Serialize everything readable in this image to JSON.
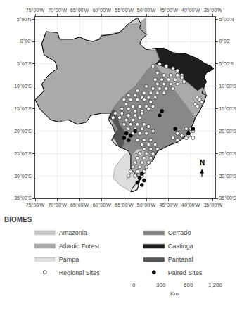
{
  "chart_data": {
    "type": "scatter",
    "xlim": [
      -75,
      -34.5
    ],
    "ylim": [
      -35,
      5.5
    ],
    "xticks": [
      {
        "value": -75,
        "label": "75°00'W"
      },
      {
        "value": -70,
        "label": "70°00'W"
      },
      {
        "value": -65,
        "label": "65°00'W"
      },
      {
        "value": -60,
        "label": "60°00'W"
      },
      {
        "value": -55,
        "label": "55°00'W"
      },
      {
        "value": -50,
        "label": "50°00'W"
      },
      {
        "value": -45,
        "label": "45°00'W"
      },
      {
        "value": -40,
        "label": "40°00'W"
      },
      {
        "value": -35,
        "label": "35°00'W"
      }
    ],
    "yticks": [
      {
        "value": 5,
        "label": "5°00'N"
      },
      {
        "value": 0,
        "label": "0°00'"
      },
      {
        "value": -5,
        "label": "5°00'S"
      },
      {
        "value": -10,
        "label": "10°00'S"
      },
      {
        "value": -15,
        "label": "15°00'S"
      },
      {
        "value": -20,
        "label": "20°00'S"
      },
      {
        "value": -25,
        "label": "25°00'S"
      },
      {
        "value": -30,
        "label": "30°00'S"
      },
      {
        "value": -35,
        "label": "35°00'S"
      }
    ],
    "grid": true,
    "legend": "bottom",
    "legend_title": "BIOMES",
    "series": [
      {
        "name": "Amazonia",
        "type": "polygon",
        "color": "#c8c8c8",
        "line_style": "solid",
        "x": [
          -34.8,
          -35.5,
          -37,
          -38.5,
          -41,
          -44,
          -46,
          -48,
          -50,
          -51.5,
          -51,
          -50,
          -51.5,
          -51.2,
          -52,
          -54,
          -56,
          -58,
          -60,
          -60.5,
          -62,
          -63.5,
          -65,
          -66.5,
          -69.5,
          -70,
          -72.5,
          -73.5,
          -73,
          -70.5,
          -70,
          -72,
          -73.5,
          -73,
          -75,
          -74,
          -72.5,
          -71.5,
          -69.5,
          -69,
          -67.5,
          -65.5,
          -63.5,
          -62.5,
          -60,
          -58,
          -58.5,
          -57.8,
          -57.5,
          -57,
          -57.8,
          -57,
          -55,
          -54,
          -53.5,
          -53.5,
          -53.5,
          -52,
          -51.5,
          -52,
          -53,
          -53.5,
          -53,
          -50.5,
          -50,
          -48.5,
          -47.5,
          -44.5,
          -43,
          -41,
          -40.5,
          -39.5,
          -39,
          -38,
          -37,
          -36.5,
          -37.5,
          -37,
          -36.5,
          -37,
          -36.5,
          -35.5,
          -34.8
        ],
        "y": [
          -6,
          -5.5,
          -4.8,
          -3.8,
          -2.8,
          -2.5,
          -1.5,
          -1.5,
          -1.8,
          -0.5,
          0.5,
          1.5,
          3,
          4,
          5.3,
          4,
          2,
          1.5,
          1.3,
          0.5,
          0,
          0.3,
          1,
          0.5,
          0.5,
          2,
          2.2,
          -0.5,
          -3,
          -4.5,
          -6,
          -7.5,
          -9.5,
          -11,
          -13,
          -15,
          -16.5,
          -17.5,
          -18,
          -17.5,
          -17.5,
          -18.5,
          -18,
          -16.5,
          -16,
          -16,
          -17.5,
          -18.5,
          -19,
          -20.5,
          -22,
          -23,
          -24,
          -24.5,
          -25.5,
          -27,
          -28.5,
          -30,
          -31,
          -33,
          -33.5,
          -33.5,
          -32.5,
          -29.5,
          -28,
          -26.5,
          -24.5,
          -23,
          -22.5,
          -21,
          -20,
          -18.5,
          -17,
          -15.5,
          -13.5,
          -12,
          -11.5,
          -10,
          -9,
          -8,
          -7,
          -6.5,
          -6
        ]
      },
      {
        "name": "Cerrado",
        "type": "polygon",
        "color": "#888888",
        "x": [
          -48,
          -45,
          -43,
          -41.5,
          -38.5,
          -37,
          -36.5,
          -37.5,
          -38,
          -39,
          -39.5,
          -40.5,
          -41,
          -43,
          -44.5,
          -46,
          -47.5,
          -48.5,
          -50,
          -52,
          -53.5,
          -54,
          -55,
          -56.5,
          -57,
          -57.5,
          -57.5,
          -56,
          -54.5,
          -52.5,
          -51,
          -49.5,
          -48
        ],
        "y": [
          -5,
          -6,
          -6.5,
          -8.5,
          -11,
          -10,
          -12,
          -13.5,
          -15.5,
          -17,
          -18.5,
          -20,
          -21,
          -22.5,
          -23,
          -23.5,
          -24.5,
          -26.5,
          -24,
          -24,
          -25.5,
          -24.5,
          -24,
          -22.5,
          -20.5,
          -18,
          -15,
          -13,
          -11.5,
          -10,
          -8,
          -6,
          -5
        ]
      },
      {
        "name": "Atlantic Forest",
        "type": "polygon",
        "color": "#aaaaaa",
        "x": [
          -39,
          -39.5,
          -40.5,
          -41,
          -43,
          -44.5,
          -46,
          -47.5,
          -48.5,
          -50,
          -50.5,
          -53,
          -52,
          -51.5,
          -52,
          -53.5,
          -53.5,
          -53.5,
          -50,
          -48.5,
          -47.5,
          -46,
          -44.5,
          -43,
          -41,
          -40.5,
          -39.5,
          -39,
          -38,
          -36.5,
          -37,
          -38.5,
          -41.5,
          -43,
          -45,
          -48,
          -49.5,
          -51,
          -52.5,
          -54.5,
          -56,
          -57.5,
          -57.5,
          -57,
          -58,
          -60,
          -62.5,
          -63.5,
          -65.5,
          -67.5,
          -69.5,
          -71.5,
          -72.5,
          -74,
          -75,
          -73,
          -73.5,
          -72,
          -70,
          -70.5,
          -73,
          -73.5,
          -72.5,
          -70,
          -69.5,
          -66.5,
          -65,
          -63.5,
          -62,
          -60.6,
          -60.2,
          -58.2,
          -56,
          -53.8,
          -51.8,
          -50.2,
          -50,
          -51,
          -51.5,
          -50,
          -48,
          -47,
          -48
        ],
        "y": [
          -17,
          -18.5,
          -20,
          -21,
          -22.5,
          -23,
          -23.5,
          -24.5,
          -26.5,
          -28,
          -29.5,
          -33.5,
          -33,
          -31,
          -30,
          -28.5,
          -27,
          -25.5,
          -24,
          -26.5,
          -24.5,
          -23.5,
          -23,
          -22.5,
          -21,
          -20,
          -18.5,
          -17,
          -15.5,
          -12,
          -10,
          -11,
          -8.5,
          -6.5,
          -6,
          -5,
          -6,
          -8,
          -10,
          -11.5,
          -13,
          -15,
          -18,
          -18.5,
          -16,
          -16,
          -16.5,
          -18,
          -18.5,
          -17.5,
          -18,
          -17.5,
          -16.5,
          -15,
          -13,
          -11,
          -9.5,
          -7.5,
          -6,
          -4.5,
          -3,
          -0.5,
          2.2,
          2,
          0.5,
          0.5,
          1,
          0.3,
          0,
          0.6,
          1.4,
          1.6,
          2.2,
          3.8,
          4,
          5.2,
          1.5,
          0.5,
          -0.5,
          -1.8,
          -2,
          -4,
          -5
        ]
      },
      {
        "name": "Caatinga",
        "type": "polygon",
        "color": "#1e1e1e",
        "x": [
          -34.8,
          -35.5,
          -37,
          -38.5,
          -41,
          -44,
          -46,
          -48,
          -47,
          -48,
          -45,
          -43,
          -41.5,
          -38.5,
          -37,
          -36.5,
          -37,
          -36.5,
          -35.5,
          -34.8
        ],
        "y": [
          -6,
          -5.5,
          -4.8,
          -3.8,
          -2.8,
          -2.5,
          -1.5,
          -1.5,
          -4,
          -5,
          -6,
          -6.5,
          -8.5,
          -11,
          -10,
          -9,
          -8,
          -7,
          -6.5,
          -6
        ]
      },
      {
        "name": "Pampa",
        "type": "polygon",
        "color": "#dedede",
        "x": [
          -53.5,
          -53.5,
          -52,
          -51.5,
          -52,
          -53,
          -53.5,
          -56,
          -57.5,
          -57,
          -55.5,
          -54,
          -53.5,
          -53.5
        ],
        "y": [
          -27,
          -28.5,
          -30,
          -31,
          -33,
          -33.5,
          -33.5,
          -32,
          -30.5,
          -28,
          -26,
          -24.5,
          -25.5,
          -27
        ]
      },
      {
        "name": "Pantanal",
        "type": "polygon",
        "color": "#555555",
        "x": [
          -57.5,
          -58,
          -58.5,
          -57.8,
          -57.5,
          -57,
          -56.5,
          -57,
          -57.5,
          -57,
          -56.5,
          -55.5,
          -55,
          -55,
          -56,
          -56.5,
          -57,
          -57.5
        ],
        "y": [
          -15,
          -16,
          -17,
          -17.5,
          -18,
          -18.5,
          -19.5,
          -20.5,
          -21.5,
          -22,
          -23,
          -24,
          -22.5,
          -20,
          -18.5,
          -17,
          -15.5,
          -15
        ]
      },
      {
        "name": "Regional Sites",
        "type": "scatter",
        "color": "#ffffff",
        "marker": "circle",
        "points": [
          [
            -48.5,
            -5.5
          ],
          [
            -47.0,
            -5.0
          ],
          [
            -45.5,
            -5.5
          ],
          [
            -44.0,
            -6.0
          ],
          [
            -43.0,
            -6.5
          ],
          [
            -47.5,
            -7.0
          ],
          [
            -46.0,
            -7.5
          ],
          [
            -44.5,
            -7.5
          ],
          [
            -43.0,
            -7.5
          ],
          [
            -42.0,
            -7.5
          ],
          [
            -48.0,
            -8.5
          ],
          [
            -46.5,
            -8.5
          ],
          [
            -45.0,
            -8.5
          ],
          [
            -43.5,
            -8.5
          ],
          [
            -42.0,
            -8.0
          ],
          [
            -47.5,
            -9.5
          ],
          [
            -46.0,
            -9.5
          ],
          [
            -44.5,
            -9.5
          ],
          [
            -43.0,
            -9.5
          ],
          [
            -41.5,
            -9.0
          ],
          [
            -50.0,
            -10.0
          ],
          [
            -48.5,
            -10.5
          ],
          [
            -47.0,
            -10.5
          ],
          [
            -45.5,
            -10.5
          ],
          [
            -44.0,
            -10.5
          ],
          [
            -52.0,
            -11.0
          ],
          [
            -50.5,
            -11.5
          ],
          [
            -49.0,
            -11.5
          ],
          [
            -47.5,
            -11.5
          ],
          [
            -46.0,
            -11.5
          ],
          [
            -54.0,
            -12.0
          ],
          [
            -52.5,
            -12.0
          ],
          [
            -51.0,
            -12.5
          ],
          [
            -49.5,
            -12.5
          ],
          [
            -48.0,
            -12.5
          ],
          [
            -55.0,
            -13.0
          ],
          [
            -53.5,
            -13.0
          ],
          [
            -52.0,
            -13.0
          ],
          [
            -50.5,
            -13.0
          ],
          [
            -49.0,
            -13.5
          ],
          [
            -54.5,
            -14.0
          ],
          [
            -53.0,
            -14.5
          ],
          [
            -51.5,
            -14.5
          ],
          [
            -50.0,
            -14.5
          ],
          [
            -48.5,
            -14.5
          ],
          [
            -55.5,
            -15.0
          ],
          [
            -54.0,
            -15.0
          ],
          [
            -52.5,
            -15.5
          ],
          [
            -51.0,
            -15.5
          ],
          [
            -49.5,
            -15.0
          ],
          [
            -57.0,
            -16.0
          ],
          [
            -55.5,
            -16.0
          ],
          [
            -54.0,
            -16.5
          ],
          [
            -52.5,
            -16.5
          ],
          [
            -51.0,
            -16.0
          ],
          [
            -57.5,
            -17.0
          ],
          [
            -56.0,
            -17.0
          ],
          [
            -54.5,
            -17.5
          ],
          [
            -53.0,
            -17.5
          ],
          [
            -51.5,
            -17.0
          ],
          [
            -55.0,
            -18.5
          ],
          [
            -53.5,
            -18.5
          ],
          [
            -52.0,
            -18.5
          ],
          [
            -50.5,
            -18.5
          ],
          [
            -54.0,
            -19.5
          ],
          [
            -52.5,
            -19.5
          ],
          [
            -51.0,
            -19.5
          ],
          [
            -49.5,
            -19.0
          ],
          [
            -53.0,
            -20.5
          ],
          [
            -51.5,
            -20.5
          ],
          [
            -50.0,
            -20.5
          ],
          [
            -48.5,
            -20.0
          ],
          [
            -52.0,
            -22.0
          ],
          [
            -50.5,
            -22.0
          ],
          [
            -49.0,
            -22.0
          ],
          [
            -51.0,
            -23.0
          ],
          [
            -49.5,
            -23.0
          ],
          [
            -48.0,
            -23.0
          ],
          [
            -50.5,
            -24.0
          ],
          [
            -49.0,
            -24.0
          ],
          [
            -47.5,
            -24.0
          ],
          [
            -51.5,
            -25.0
          ],
          [
            -50.0,
            -25.0
          ],
          [
            -48.5,
            -25.0
          ],
          [
            -52.0,
            -26.0
          ],
          [
            -50.5,
            -26.0
          ],
          [
            -49.0,
            -26.0
          ],
          [
            -52.5,
            -27.0
          ],
          [
            -51.0,
            -27.0
          ],
          [
            -49.5,
            -27.0
          ],
          [
            -53.0,
            -28.0
          ],
          [
            -51.5,
            -28.0
          ],
          [
            -50.0,
            -28.0
          ],
          [
            -53.5,
            -29.0
          ],
          [
            -52.0,
            -29.0
          ],
          [
            -50.5,
            -29.0
          ],
          [
            -54.0,
            -30.0
          ],
          [
            -52.5,
            -30.0
          ],
          [
            -51.0,
            -30.0
          ],
          [
            -43.0,
            -20.5
          ],
          [
            -42.0,
            -21.0
          ],
          [
            -41.0,
            -21.5
          ],
          [
            -44.0,
            -21.5
          ],
          [
            -43.0,
            -22.0
          ],
          [
            -41.0,
            -19.5
          ],
          [
            -40.0,
            -19.5
          ],
          [
            -39.5,
            -20.0
          ],
          [
            -40.5,
            -21.0
          ],
          [
            -39.5,
            -21.5
          ],
          [
            -38.5,
            -12.5
          ],
          [
            -38.0,
            -13.0
          ],
          [
            -37.5,
            -13.5
          ],
          [
            -39.0,
            -14.0
          ],
          [
            -38.5,
            -14.5
          ]
        ]
      },
      {
        "name": "Paired Sites",
        "type": "scatter",
        "color": "#000000",
        "marker": "circle",
        "points": [
          [
            -54.5,
            -20.5
          ],
          [
            -53.5,
            -21.0
          ],
          [
            -52.5,
            -20.0
          ],
          [
            -55.0,
            -21.5
          ],
          [
            -54.0,
            -22.0
          ],
          [
            -51.0,
            -29.5
          ],
          [
            -51.5,
            -30.5
          ],
          [
            -50.5,
            -31.0
          ],
          [
            -52.0,
            -31.5
          ],
          [
            -51.0,
            -32.0
          ],
          [
            -40.5,
            -20.5
          ],
          [
            -39.5,
            -19.5
          ],
          [
            -43.5,
            -19.5
          ],
          [
            -46.5,
            -15.5
          ],
          [
            -47.0,
            -16.5
          ]
        ]
      }
    ],
    "annotations": [
      {
        "text": "N",
        "x": -37.5,
        "y": -28.3,
        "arrow_from": [
          -37.5,
          -30.5
        ],
        "arrow_to": [
          -37.5,
          -28.5
        ]
      }
    ],
    "scale_bar": {
      "ticks": [
        0,
        300,
        600,
        {
          "value": 1200,
          "label": "1,200"
        }
      ],
      "unit": "Km",
      "colors": [
        "#000000",
        "#ffffff",
        "#000000"
      ]
    }
  }
}
